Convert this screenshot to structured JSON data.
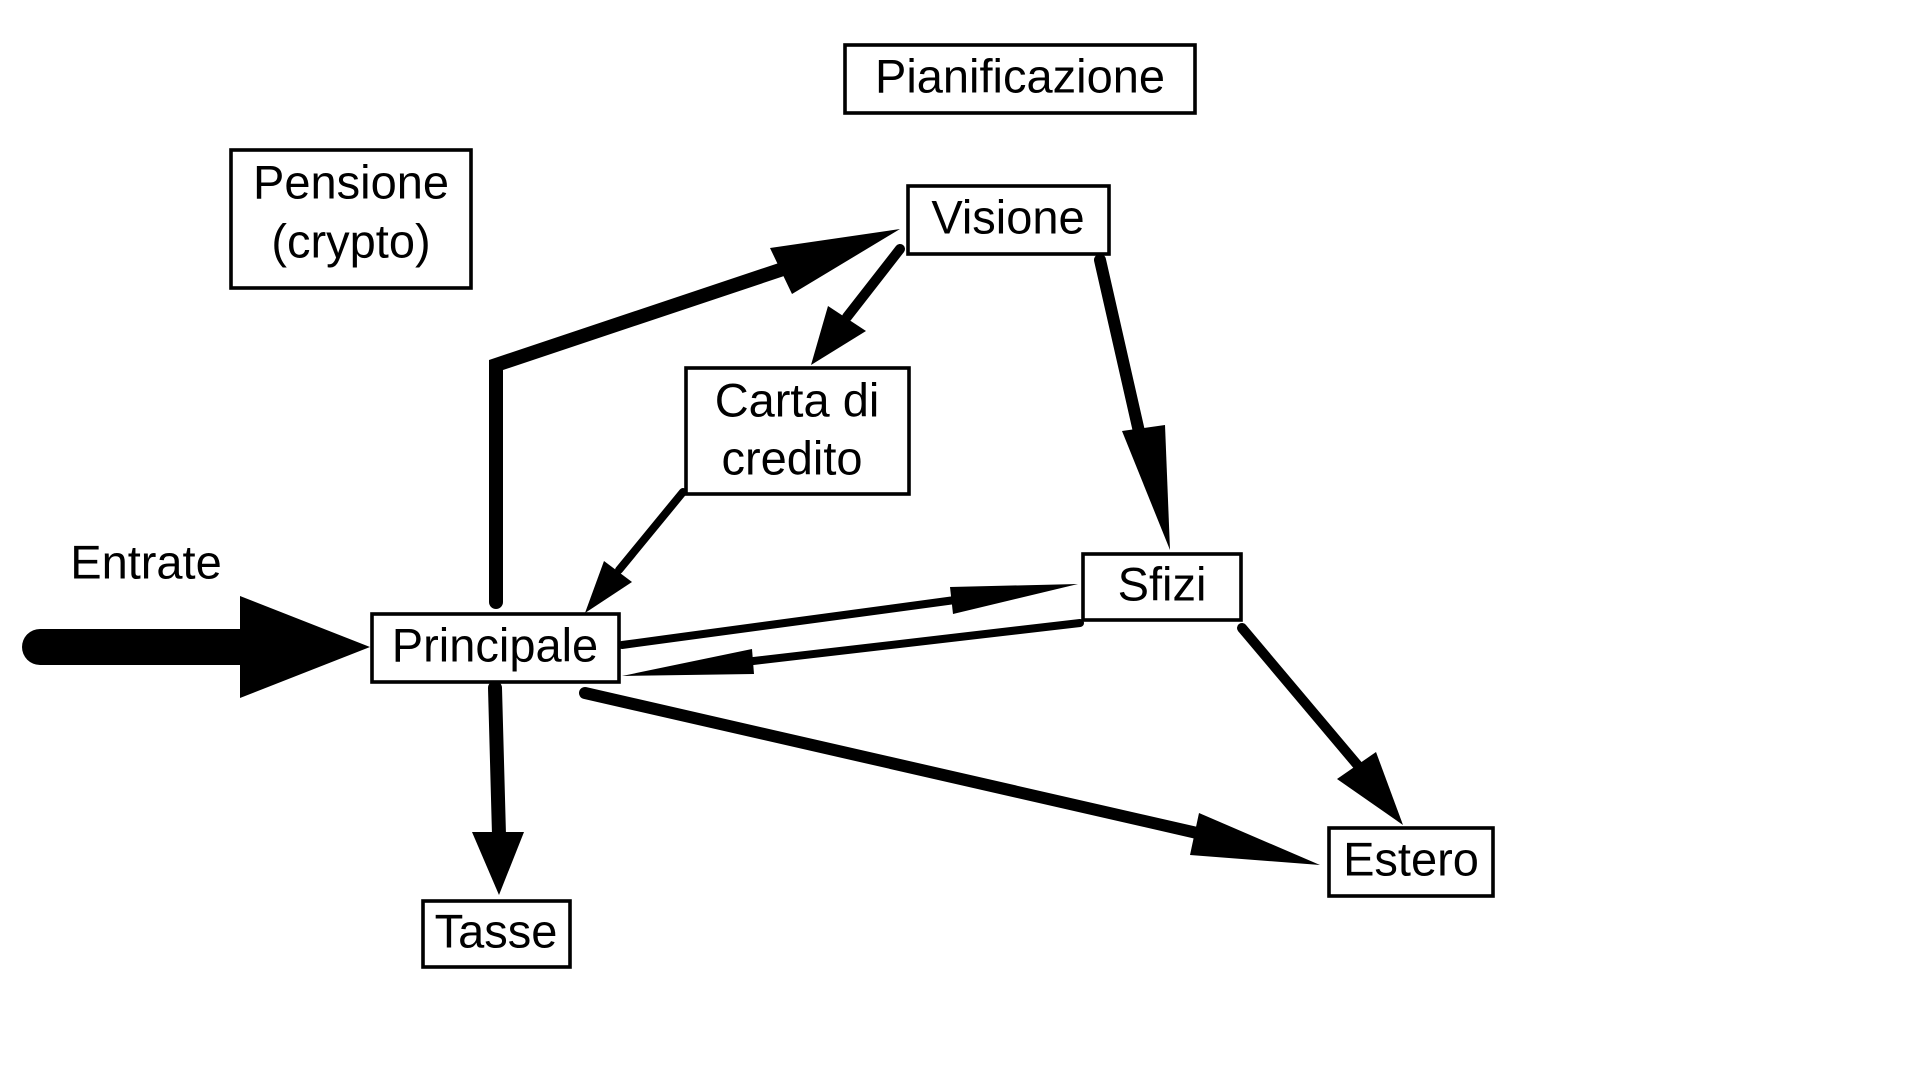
{
  "diagram": {
    "title": "Pianificazione",
    "input_label": "Entrate",
    "nodes": {
      "pensione": {
        "lines": [
          "Pensione",
          "(crypto)"
        ]
      },
      "visione": {
        "lines": [
          "Visione"
        ]
      },
      "carta": {
        "lines": [
          "Carta di",
          "credito"
        ]
      },
      "principale": {
        "lines": [
          "Principale"
        ]
      },
      "sfizi": {
        "lines": [
          "Sfizi"
        ]
      },
      "tasse": {
        "lines": [
          "Tasse"
        ]
      },
      "estero": {
        "lines": [
          "Estero"
        ]
      }
    },
    "edges": [
      {
        "from": "Entrate",
        "to": "Principale"
      },
      {
        "from": "Principale",
        "to": "Visione"
      },
      {
        "from": "Visione",
        "to": "Carta di credito"
      },
      {
        "from": "Carta di credito",
        "to": "Principale"
      },
      {
        "from": "Visione",
        "to": "Sfizi"
      },
      {
        "from": "Principale",
        "to": "Sfizi"
      },
      {
        "from": "Sfizi",
        "to": "Principale"
      },
      {
        "from": "Principale",
        "to": "Tasse"
      },
      {
        "from": "Principale",
        "to": "Estero"
      },
      {
        "from": "Sfizi",
        "to": "Estero"
      }
    ]
  }
}
